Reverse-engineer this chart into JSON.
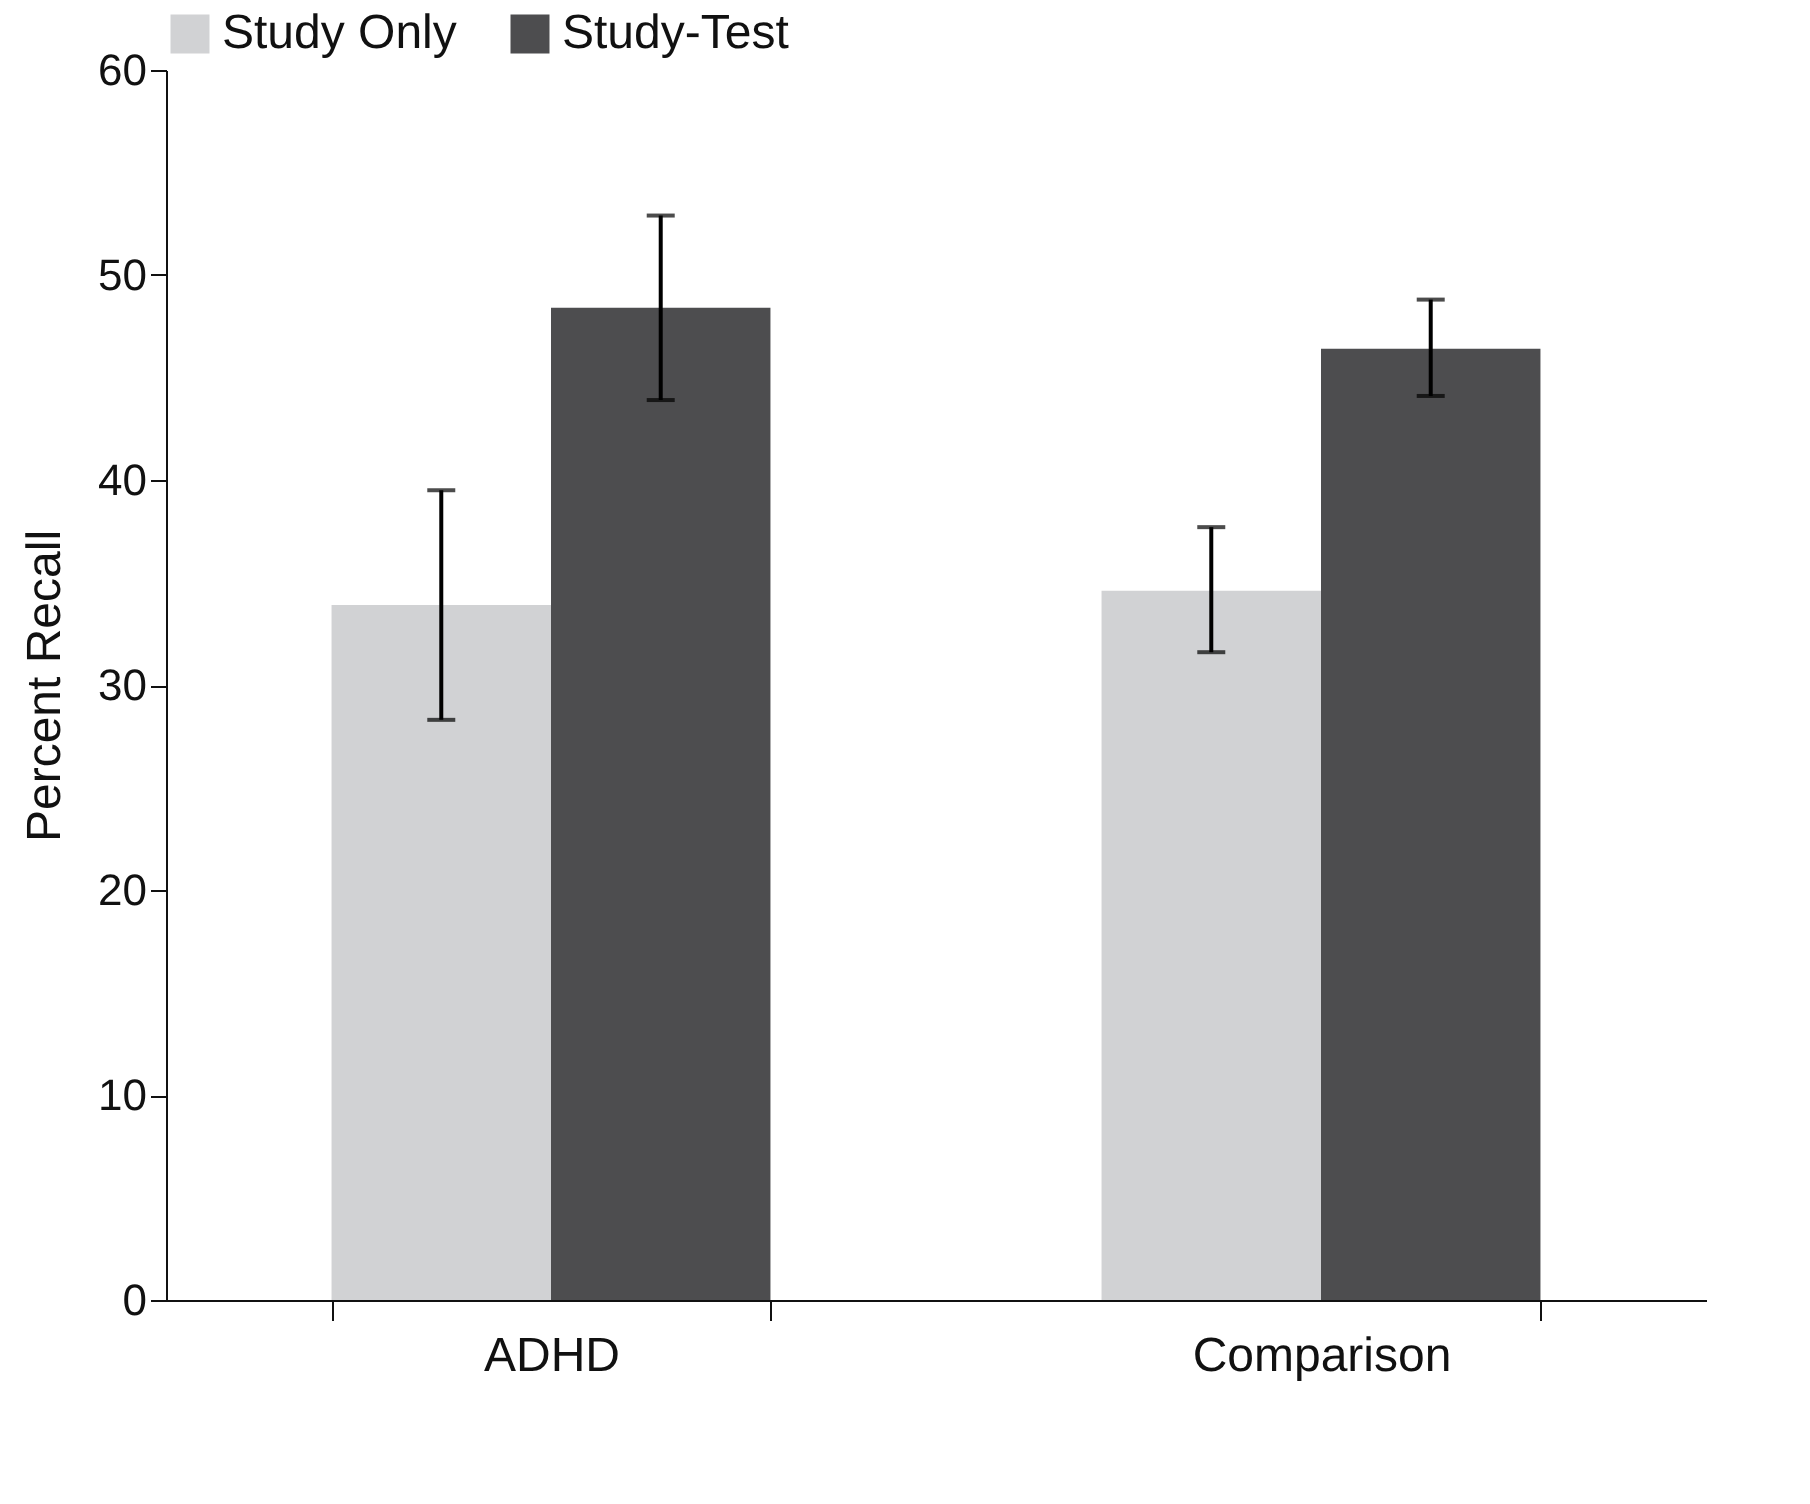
{
  "chart_data": {
    "type": "bar",
    "ylabel": "Percent Recall",
    "categories": [
      "ADHD",
      "Comparison"
    ],
    "series": [
      {
        "name": "Study Only",
        "color": "#d1d2d4",
        "values": [
          33.9,
          34.6
        ],
        "errors": [
          [
            28.3,
            39.5
          ],
          [
            31.6,
            37.7
          ]
        ]
      },
      {
        "name": "Study-Test",
        "color": "#4d4d4f",
        "values": [
          48.4,
          46.4
        ],
        "errors": [
          [
            43.9,
            52.9
          ],
          [
            44.1,
            48.8
          ]
        ]
      }
    ],
    "ylim": [
      0,
      60
    ],
    "yticks": [
      0,
      10,
      20,
      30,
      40,
      50,
      60
    ],
    "grid": false,
    "legend": "top left"
  }
}
